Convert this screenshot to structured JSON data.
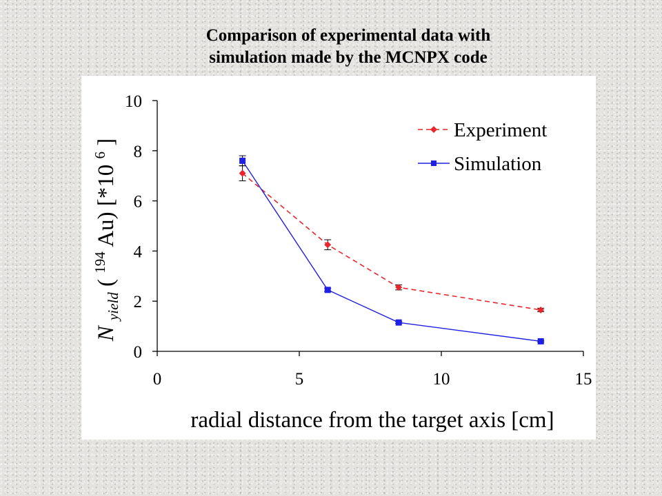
{
  "title_line1": "Comparison of  experimental  data with",
  "title_line2": "simulation made by the MCNPX code",
  "chart_data": {
    "type": "line",
    "xlabel": "radial distance from the target axis [cm]",
    "ylabel": {
      "n": "N",
      "n_sub": "yield",
      "open": " (",
      "iso_sup": "194",
      "element": "Au) [*10",
      "exp_sup": "6",
      "close": "]"
    },
    "xlim": [
      0,
      15
    ],
    "ylim": [
      0,
      10
    ],
    "xticks": [
      "0",
      "5",
      "10",
      "15"
    ],
    "yticks": [
      "0",
      "2",
      "4",
      "6",
      "8",
      "10"
    ],
    "grid": false,
    "legend_position": "top-right",
    "series": [
      {
        "name": "Experiment",
        "color": "#e8262b",
        "style": "dashed",
        "marker": "diamond",
        "x": [
          3,
          6,
          8.5,
          13.5
        ],
        "y": [
          7.1,
          4.25,
          2.55,
          1.65
        ],
        "err": [
          0.3,
          0.2,
          0.1,
          0.07
        ]
      },
      {
        "name": "Simulation",
        "color": "#1f1fe6",
        "style": "solid",
        "marker": "square",
        "x": [
          3,
          6,
          8.5,
          13.5
        ],
        "y": [
          7.6,
          2.45,
          1.15,
          0.4
        ],
        "err": [
          0.2,
          0.07,
          0.04,
          0.03
        ]
      }
    ]
  }
}
